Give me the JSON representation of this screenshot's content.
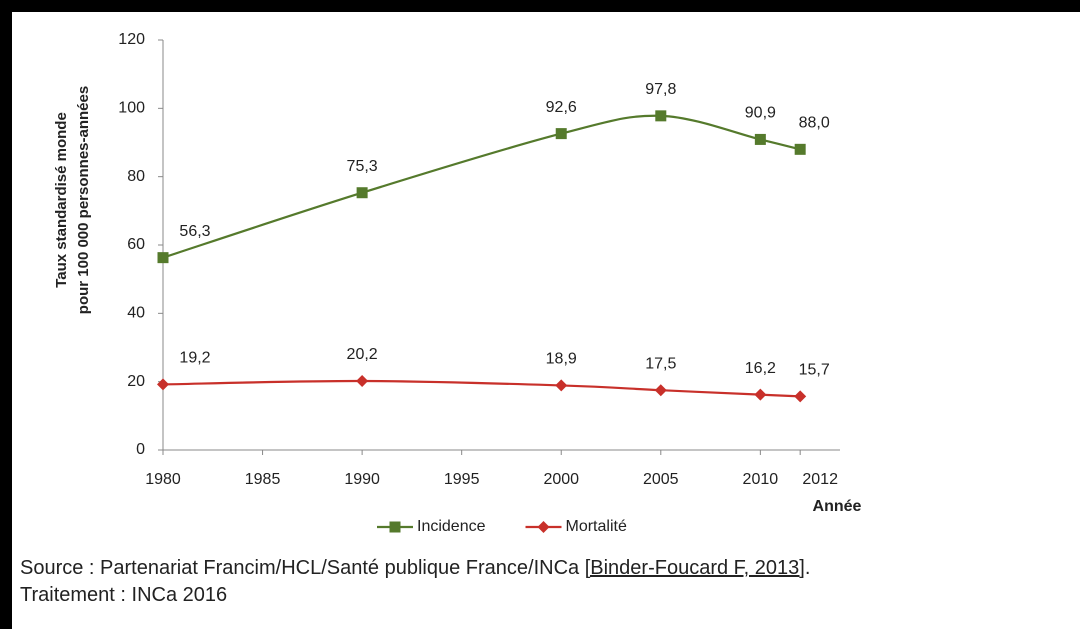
{
  "chart_data": {
    "type": "line",
    "ylabel": [
      "Taux standardisé monde",
      "pour 100 000 personnes-années"
    ],
    "xlabel": "Année",
    "x": [
      1980,
      1990,
      2000,
      2005,
      2010,
      2012
    ],
    "series": [
      {
        "name": "Incidence",
        "color": "#557a2c",
        "marker": "square",
        "values": [
          56.3,
          75.3,
          92.6,
          97.8,
          90.9,
          88.0
        ],
        "value_labels": [
          "56,3",
          "75,3",
          "92,6",
          "97,8",
          "90,9",
          "88,0"
        ]
      },
      {
        "name": "Mortalité",
        "color": "#c8302a",
        "marker": "diamond",
        "values": [
          19.2,
          20.2,
          18.9,
          17.5,
          16.2,
          15.7
        ],
        "value_labels": [
          "19,2",
          "20,2",
          "18,9",
          "17,5",
          "16,2",
          "15,7"
        ]
      }
    ],
    "xlim": [
      1980,
      2014
    ],
    "xticks": [
      1980,
      1985,
      1990,
      1995,
      2000,
      2005,
      2010,
      2012
    ],
    "ylim": [
      0,
      120
    ],
    "yticks": [
      0,
      20,
      40,
      60,
      80,
      100,
      120
    ],
    "grid": false,
    "smooth": true,
    "legend": "bottom"
  },
  "source": {
    "text": "Source : Partenariat Francim/HCL/Santé publique France/INCa ",
    "link": "[Binder-Foucard F, 2013]",
    "end": ".",
    "line2": "Traitement : INCa 2016"
  }
}
